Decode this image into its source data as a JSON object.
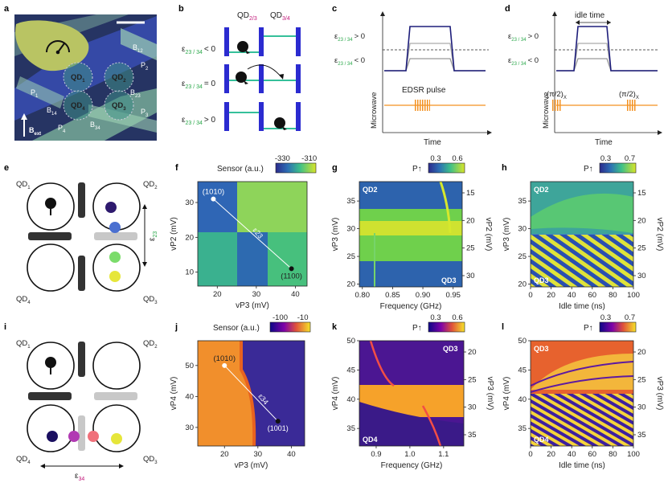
{
  "figure": {
    "panel_labels": [
      "a",
      "b",
      "c",
      "d",
      "e",
      "f",
      "g",
      "h",
      "i",
      "j",
      "k",
      "l"
    ]
  },
  "panel_a": {
    "dots": [
      "QD1",
      "QD2",
      "QD3",
      "QD4"
    ],
    "dot_labels": [
      "QD",
      "QD",
      "QD",
      "QD"
    ],
    "dot_subs": [
      "1",
      "2",
      "3",
      "4"
    ],
    "gates": [
      "B12",
      "B23",
      "B34",
      "B14"
    ],
    "gate_base": [
      "B",
      "B",
      "B",
      "B"
    ],
    "gate_subs": [
      "12",
      "23",
      "34",
      "14"
    ],
    "plungers": [
      "P",
      "P",
      "P",
      "P"
    ],
    "plunger_subs": [
      "1",
      "2",
      "3",
      "4"
    ],
    "field_label": "B",
    "field_sub": "ext"
  },
  "panel_b": {
    "top_left": "QD",
    "top_left_sub": "2/3",
    "top_right": "QD",
    "top_right_sub": "3/4",
    "rows": [
      {
        "eps": "ε",
        "sub": "23 / 34",
        "rel": "< 0"
      },
      {
        "eps": "ε",
        "sub": "23 / 34",
        "rel": "= 0"
      },
      {
        "eps": "ε",
        "sub": "23 / 34",
        "rel": "> 0"
      }
    ]
  },
  "panel_c": {
    "eps_pos": "ε",
    "eps_pos_sub": "23 / 34",
    "eps_pos_rel": "> 0",
    "eps_neg": "ε",
    "eps_neg_sub": "23 / 34",
    "eps_neg_rel": "< 0",
    "pulse_label": "EDSR pulse",
    "ylabel": "Microwave",
    "xlabel": "Time"
  },
  "panel_d": {
    "eps_pos": "ε",
    "eps_pos_sub": "23 / 34",
    "eps_pos_rel": "> 0",
    "eps_neg": "ε",
    "eps_neg_sub": "23 / 34",
    "eps_neg_rel": "< 0",
    "idle_label": "idle time",
    "pi2_left": "(π/2)",
    "pi2_right": "(π/2)",
    "pi2_sub": "X",
    "ylabel": "Microwave",
    "xlabel": "Time"
  },
  "panel_e": {
    "dots": [
      "QD",
      "QD",
      "QD",
      "QD"
    ],
    "dot_subs": [
      "1",
      "2",
      "3",
      "4"
    ],
    "eps": "ε",
    "eps_sub": "23"
  },
  "panel_i": {
    "dots": [
      "QD",
      "QD",
      "QD",
      "QD"
    ],
    "dot_subs": [
      "1",
      "2",
      "3",
      "4"
    ],
    "eps": "ε",
    "eps_sub": "34"
  },
  "chart_data": [
    {
      "panel": "f",
      "type": "heatmap",
      "title": "Sensor (a.u.)",
      "colorbar_ticks": [
        "-330",
        "-310"
      ],
      "colorbar_range": [
        -335,
        -305
      ],
      "xlabel": "vP3 (mV)",
      "ylabel": "vP2 (mV)",
      "xticks": [
        "20",
        "30",
        "40"
      ],
      "yticks": [
        "10",
        "20",
        "30"
      ],
      "xlim": [
        15,
        43
      ],
      "ylim": [
        6,
        36
      ],
      "annotations": [
        {
          "text": "(1010)",
          "x": 19,
          "y": 31
        },
        {
          "text": "(1100)",
          "x": 39,
          "y": 11
        },
        {
          "text": "ε23",
          "x": 29,
          "y": 22
        }
      ]
    },
    {
      "panel": "g",
      "type": "heatmap",
      "title": "P↑",
      "colorbar_ticks": [
        "0.3",
        "0.6"
      ],
      "colorbar_range": [
        0.2,
        0.7
      ],
      "xlabel": "Frequency (GHz)",
      "ylabel": "vP3 (mV)",
      "ylabel_right": "vP2 (mV)",
      "xticks": [
        "0.80",
        "0.85",
        "0.90",
        "0.95"
      ],
      "yticks": [
        "20",
        "25",
        "30",
        "35"
      ],
      "yticks_right": [
        "15",
        "20",
        "25",
        "30"
      ],
      "xlim": [
        0.795,
        0.965
      ],
      "ylim": [
        19.5,
        38.5
      ],
      "corner_labels": [
        "QD2",
        "QD3"
      ]
    },
    {
      "panel": "h",
      "type": "heatmap",
      "title": "P↑",
      "colorbar_ticks": [
        "0.3",
        "0.7"
      ],
      "colorbar_range": [
        0.2,
        0.8
      ],
      "xlabel": "Idle time (ns)",
      "ylabel": "vP3 (mV)",
      "ylabel_right": "vP2 (mV)",
      "xticks": [
        "0",
        "20",
        "40",
        "60",
        "80",
        "100"
      ],
      "yticks": [
        "20",
        "25",
        "30",
        "35"
      ],
      "yticks_right": [
        "15",
        "20",
        "25",
        "30"
      ],
      "xlim": [
        0,
        100
      ],
      "ylim": [
        19.5,
        38.5
      ],
      "corner_labels": [
        "QD2",
        "QD3"
      ]
    },
    {
      "panel": "j",
      "type": "heatmap",
      "title": "Sensor (a.u.)",
      "colorbar_ticks": [
        "-100",
        "-10"
      ],
      "colorbar_range": [
        -140,
        20
      ],
      "xlabel": "vP3 (mV)",
      "ylabel": "vP4 (mV)",
      "xticks": [
        "20",
        "30",
        "40"
      ],
      "yticks": [
        "30",
        "40",
        "50"
      ],
      "xlim": [
        12,
        44
      ],
      "ylim": [
        24,
        58
      ],
      "annotations": [
        {
          "text": "(1010)",
          "x": 20,
          "y": 50
        },
        {
          "text": "(1001)",
          "x": 36,
          "y": 32
        },
        {
          "text": "ε34",
          "x": 30,
          "y": 40
        }
      ]
    },
    {
      "panel": "k",
      "type": "heatmap",
      "title": "P↑",
      "colorbar_ticks": [
        "0.3",
        "0.6"
      ],
      "colorbar_range": [
        0.2,
        0.7
      ],
      "xlabel": "Frequency (GHz)",
      "ylabel": "vP4 (mV)",
      "ylabel_right": "vP3 (mV)",
      "xticks": [
        "0.9",
        "1.0",
        "1.1"
      ],
      "yticks": [
        "35",
        "40",
        "45",
        "50"
      ],
      "yticks_right": [
        "20",
        "25",
        "30",
        "35"
      ],
      "xlim": [
        0.85,
        1.16
      ],
      "ylim": [
        32,
        50
      ],
      "corner_labels": [
        "QD3",
        "QD4"
      ]
    },
    {
      "panel": "l",
      "type": "heatmap",
      "title": "P↑",
      "colorbar_ticks": [
        "0.3",
        "0.7"
      ],
      "colorbar_range": [
        0.2,
        0.8
      ],
      "xlabel": "Idle time (ns)",
      "ylabel": "vP4 (mV)",
      "ylabel_right": "vP3 (mV)",
      "xticks": [
        "0",
        "20",
        "40",
        "60",
        "80",
        "100"
      ],
      "yticks": [
        "35",
        "40",
        "45",
        "50"
      ],
      "yticks_right": [
        "20",
        "25",
        "30",
        "35"
      ],
      "xlim": [
        0,
        100
      ],
      "ylim": [
        32,
        50
      ],
      "corner_labels": [
        "QD3",
        "QD4"
      ]
    }
  ]
}
